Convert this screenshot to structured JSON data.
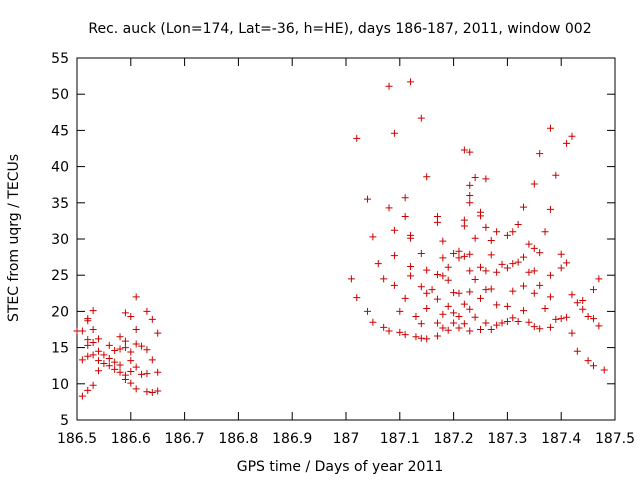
{
  "chart_data": {
    "type": "scatter",
    "title": "Rec. auck (Lon=174, Lat=-36, h=HE), days 186-187, 2011, window 002",
    "xlabel": "GPS time / Days of year 2011",
    "ylabel": "STEC from uqrg / TECUs",
    "xlim": [
      186.5,
      187.5
    ],
    "ylim": [
      5,
      55
    ],
    "xticks": [
      "186.5",
      "186.6",
      "186.7",
      "186.8",
      "186.9",
      "187",
      "187.1",
      "187.2",
      "187.3",
      "187.4",
      "187.5"
    ],
    "yticks": [
      "5",
      "10",
      "15",
      "20",
      "25",
      "30",
      "35",
      "40",
      "45",
      "50",
      "55"
    ],
    "grid": false,
    "marker": "+",
    "color": "#cc0000",
    "series": [
      {
        "name": "STEC",
        "points": [
          [
            186.5,
            17.3
          ],
          [
            186.51,
            8.3
          ],
          [
            186.51,
            13.3
          ],
          [
            186.51,
            17.3
          ],
          [
            186.52,
            19.0
          ],
          [
            186.52,
            18.7
          ],
          [
            186.52,
            16.1
          ],
          [
            186.52,
            15.3
          ],
          [
            186.52,
            13.8
          ],
          [
            186.52,
            9.1
          ],
          [
            186.53,
            20.1
          ],
          [
            186.53,
            17.5
          ],
          [
            186.53,
            15.7
          ],
          [
            186.53,
            14.0
          ],
          [
            186.53,
            9.8
          ],
          [
            186.54,
            16.2
          ],
          [
            186.54,
            14.5
          ],
          [
            186.54,
            13.2
          ],
          [
            186.54,
            11.8
          ],
          [
            186.55,
            14.0
          ],
          [
            186.55,
            12.8
          ],
          [
            186.56,
            15.3
          ],
          [
            186.56,
            13.5
          ],
          [
            186.56,
            12.5
          ],
          [
            186.57,
            14.6
          ],
          [
            186.57,
            13.0
          ],
          [
            186.57,
            12.0
          ],
          [
            186.58,
            16.5
          ],
          [
            186.58,
            14.8
          ],
          [
            186.58,
            12.6
          ],
          [
            186.58,
            11.6
          ],
          [
            186.59,
            19.8
          ],
          [
            186.59,
            15.9
          ],
          [
            186.59,
            15.0
          ],
          [
            186.59,
            11.2
          ],
          [
            186.59,
            10.6
          ],
          [
            186.6,
            19.3
          ],
          [
            186.6,
            14.4
          ],
          [
            186.6,
            13.2
          ],
          [
            186.6,
            11.7
          ],
          [
            186.6,
            10.1
          ],
          [
            186.61,
            22.0
          ],
          [
            186.61,
            17.5
          ],
          [
            186.61,
            15.5
          ],
          [
            186.61,
            12.3
          ],
          [
            186.61,
            9.3
          ],
          [
            186.62,
            15.2
          ],
          [
            186.62,
            11.3
          ],
          [
            186.63,
            20.0
          ],
          [
            186.63,
            14.7
          ],
          [
            186.63,
            11.4
          ],
          [
            186.63,
            8.9
          ],
          [
            186.64,
            18.9
          ],
          [
            186.64,
            13.3
          ],
          [
            186.64,
            8.8
          ],
          [
            186.65,
            11.6
          ],
          [
            186.65,
            17.0
          ],
          [
            186.65,
            9.0
          ],
          [
            187.01,
            24.5
          ],
          [
            187.02,
            21.9
          ],
          [
            187.02,
            43.9
          ],
          [
            187.04,
            35.5
          ],
          [
            187.04,
            20.0
          ],
          [
            187.05,
            18.5
          ],
          [
            187.05,
            30.3
          ],
          [
            187.06,
            26.6
          ],
          [
            187.07,
            17.8
          ],
          [
            187.07,
            24.5
          ],
          [
            187.08,
            51.1
          ],
          [
            187.08,
            34.3
          ],
          [
            187.08,
            17.3
          ],
          [
            187.09,
            44.6
          ],
          [
            187.09,
            31.2
          ],
          [
            187.09,
            27.7
          ],
          [
            187.09,
            23.6
          ],
          [
            187.1,
            20.0
          ],
          [
            187.1,
            17.1
          ],
          [
            187.11,
            35.7
          ],
          [
            187.11,
            33.1
          ],
          [
            187.11,
            21.8
          ],
          [
            187.11,
            16.8
          ],
          [
            187.12,
            51.7
          ],
          [
            187.12,
            30.5
          ],
          [
            187.12,
            30.1
          ],
          [
            187.12,
            26.2
          ],
          [
            187.12,
            24.9
          ],
          [
            187.13,
            16.5
          ],
          [
            187.13,
            19.3
          ],
          [
            187.14,
            46.7
          ],
          [
            187.14,
            28.0
          ],
          [
            187.14,
            23.4
          ],
          [
            187.14,
            18.3
          ],
          [
            187.14,
            16.3
          ],
          [
            187.15,
            38.6
          ],
          [
            187.15,
            25.7
          ],
          [
            187.15,
            22.5
          ],
          [
            187.15,
            20.4
          ],
          [
            187.15,
            16.2
          ],
          [
            187.16,
            23.0
          ],
          [
            187.17,
            33.1
          ],
          [
            187.17,
            32.3
          ],
          [
            187.17,
            25.1
          ],
          [
            187.17,
            21.7
          ],
          [
            187.17,
            18.4
          ],
          [
            187.17,
            16.6
          ],
          [
            187.18,
            29.7
          ],
          [
            187.18,
            27.4
          ],
          [
            187.18,
            24.9
          ],
          [
            187.18,
            19.6
          ],
          [
            187.18,
            17.7
          ],
          [
            187.19,
            26.1
          ],
          [
            187.19,
            24.3
          ],
          [
            187.19,
            20.7
          ],
          [
            187.19,
            17.4
          ],
          [
            187.2,
            28.0
          ],
          [
            187.2,
            22.6
          ],
          [
            187.2,
            19.8
          ],
          [
            187.2,
            18.4
          ],
          [
            187.21,
            28.3
          ],
          [
            187.21,
            27.4
          ],
          [
            187.21,
            22.5
          ],
          [
            187.21,
            19.3
          ],
          [
            187.21,
            17.7
          ],
          [
            187.22,
            42.3
          ],
          [
            187.22,
            32.6
          ],
          [
            187.22,
            31.8
          ],
          [
            187.22,
            27.6
          ],
          [
            187.22,
            21.0
          ],
          [
            187.22,
            18.3
          ],
          [
            187.23,
            42.0
          ],
          [
            187.23,
            37.4
          ],
          [
            187.23,
            36.0
          ],
          [
            187.23,
            35.0
          ],
          [
            187.23,
            27.9
          ],
          [
            187.23,
            25.6
          ],
          [
            187.23,
            22.7
          ],
          [
            187.23,
            20.3
          ],
          [
            187.23,
            17.3
          ],
          [
            187.24,
            38.5
          ],
          [
            187.24,
            30.1
          ],
          [
            187.24,
            24.4
          ],
          [
            187.24,
            19.2
          ],
          [
            187.25,
            33.7
          ],
          [
            187.25,
            33.2
          ],
          [
            187.25,
            26.1
          ],
          [
            187.25,
            21.8
          ],
          [
            187.25,
            17.5
          ],
          [
            187.26,
            38.3
          ],
          [
            187.26,
            31.6
          ],
          [
            187.26,
            25.6
          ],
          [
            187.26,
            23.0
          ],
          [
            187.26,
            18.4
          ],
          [
            187.27,
            29.8
          ],
          [
            187.27,
            27.8
          ],
          [
            187.27,
            23.1
          ],
          [
            187.27,
            17.5
          ],
          [
            187.28,
            31.0
          ],
          [
            187.28,
            25.4
          ],
          [
            187.28,
            20.9
          ],
          [
            187.28,
            18.1
          ],
          [
            187.29,
            26.5
          ],
          [
            187.29,
            18.4
          ],
          [
            187.3,
            30.5
          ],
          [
            187.3,
            26.0
          ],
          [
            187.3,
            20.7
          ],
          [
            187.3,
            18.6
          ],
          [
            187.31,
            31.0
          ],
          [
            187.31,
            26.6
          ],
          [
            187.31,
            22.8
          ],
          [
            187.31,
            19.1
          ],
          [
            187.32,
            32.0
          ],
          [
            187.32,
            26.8
          ],
          [
            187.32,
            18.6
          ],
          [
            187.33,
            34.4
          ],
          [
            187.33,
            27.5
          ],
          [
            187.33,
            23.5
          ],
          [
            187.33,
            20.1
          ],
          [
            187.34,
            29.3
          ],
          [
            187.34,
            25.4
          ],
          [
            187.34,
            18.5
          ],
          [
            187.35,
            37.6
          ],
          [
            187.35,
            28.7
          ],
          [
            187.35,
            25.6
          ],
          [
            187.35,
            22.5
          ],
          [
            187.35,
            17.9
          ],
          [
            187.36,
            41.8
          ],
          [
            187.36,
            28.1
          ],
          [
            187.36,
            23.6
          ],
          [
            187.36,
            17.6
          ],
          [
            187.37,
            31.0
          ],
          [
            187.37,
            20.4
          ],
          [
            187.38,
            45.3
          ],
          [
            187.38,
            34.1
          ],
          [
            187.38,
            25.0
          ],
          [
            187.38,
            22.0
          ],
          [
            187.38,
            17.8
          ],
          [
            187.39,
            38.8
          ],
          [
            187.39,
            18.9
          ],
          [
            187.4,
            27.9
          ],
          [
            187.4,
            26.0
          ],
          [
            187.4,
            19.0
          ],
          [
            187.41,
            43.2
          ],
          [
            187.41,
            26.7
          ],
          [
            187.41,
            19.2
          ],
          [
            187.42,
            44.2
          ],
          [
            187.42,
            22.3
          ],
          [
            187.42,
            17.0
          ],
          [
            187.43,
            21.2
          ],
          [
            187.43,
            14.5
          ],
          [
            187.44,
            20.3
          ],
          [
            187.44,
            21.5
          ],
          [
            187.45,
            19.3
          ],
          [
            187.45,
            13.2
          ],
          [
            187.46,
            23.0
          ],
          [
            187.46,
            19.0
          ],
          [
            187.46,
            12.5
          ],
          [
            187.47,
            24.5
          ],
          [
            187.47,
            18.0
          ],
          [
            187.48,
            11.9
          ]
        ]
      }
    ]
  }
}
